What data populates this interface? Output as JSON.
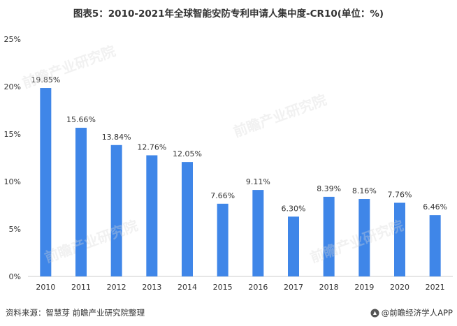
{
  "title": "图表5：2010-2021年全球智能安防专利申请人集中度-CR10(单位：%)",
  "footer": {
    "source": "资料来源：智慧芽 前瞻产业研究院整理",
    "brand": "@前瞻经济学人APP"
  },
  "watermark_text": "前瞻产业研究院",
  "colors": {
    "bar": "#3f86e8",
    "axis": "#cccccc",
    "text": "#333333"
  },
  "chart_data": {
    "type": "bar",
    "categories": [
      "2010",
      "2011",
      "2012",
      "2013",
      "2014",
      "2015",
      "2016",
      "2017",
      "2018",
      "2019",
      "2020",
      "2021"
    ],
    "values": [
      19.85,
      15.66,
      13.84,
      12.76,
      12.05,
      7.66,
      9.11,
      6.3,
      8.39,
      8.16,
      7.76,
      6.46
    ],
    "data_labels": [
      "19.85%",
      "15.66%",
      "13.84%",
      "12.76%",
      "12.05%",
      "7.66%",
      "9.11%",
      "6.30%",
      "8.39%",
      "8.16%",
      "7.76%",
      "6.46%"
    ],
    "yticks": [
      "0%",
      "5%",
      "10%",
      "15%",
      "20%",
      "25%"
    ],
    "ylim": [
      0,
      25
    ],
    "grid": false,
    "legend": "none"
  }
}
